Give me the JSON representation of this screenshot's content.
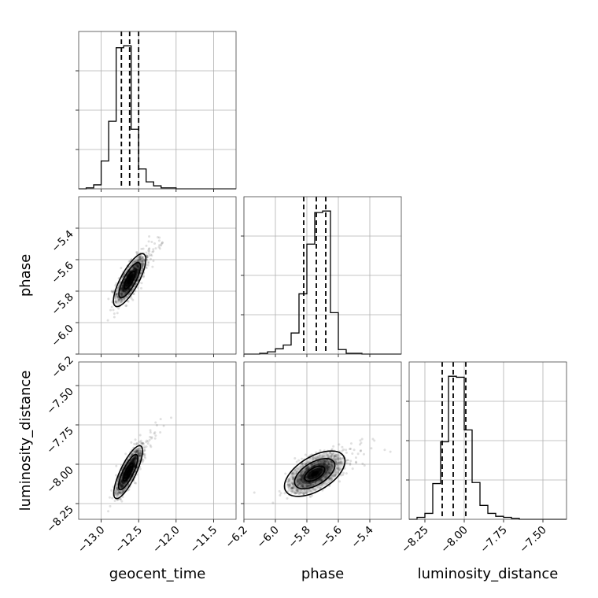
{
  "chart_data": {
    "type": "corner",
    "parameters": [
      {
        "name": "geocent_time",
        "range": [
          -13.3,
          -11.2
        ],
        "ticks": [
          -13.0,
          -12.5,
          -12.0,
          -11.5
        ],
        "tick_labels": [
          "−13.0",
          "−12.5",
          "−12.0",
          "−11.5"
        ],
        "quantiles": [
          -12.73,
          -12.62,
          -12.5
        ],
        "histogram": {
          "bin_edges": [
            -13.3,
            -13.2,
            -13.1,
            -13.0,
            -12.9,
            -12.8,
            -12.7,
            -12.6,
            -12.5,
            -12.4,
            -12.3,
            -12.2,
            -12.1,
            -12.0,
            -11.9,
            -11.8,
            -11.7,
            -11.6,
            -11.5,
            -11.4,
            -11.3,
            -11.2
          ],
          "counts": [
            0,
            1,
            4,
            28,
            68,
            142,
            144,
            60,
            20,
            7,
            3,
            1,
            1,
            0,
            0,
            0,
            0,
            0,
            0,
            0,
            0
          ]
        }
      },
      {
        "name": "phase",
        "range": [
          -6.2,
          -5.2
        ],
        "ticks": [
          -6.2,
          -6.0,
          -5.8,
          -5.6,
          -5.4
        ],
        "tick_labels": [
          "−6.2",
          "−6.0",
          "−5.8",
          "−5.6",
          "−5.4"
        ],
        "quantiles": [
          -5.82,
          -5.74,
          -5.68
        ],
        "histogram": {
          "bin_edges": [
            -6.2,
            -6.15,
            -6.1,
            -6.05,
            -6.0,
            -5.95,
            -5.9,
            -5.85,
            -5.8,
            -5.75,
            -5.7,
            -5.65,
            -5.6,
            -5.55,
            -5.5,
            -5.45,
            -5.4,
            -5.35,
            -5.3,
            -5.25,
            -5.2
          ],
          "counts": [
            0,
            0,
            1,
            3,
            7,
            12,
            28,
            80,
            146,
            188,
            190,
            55,
            6,
            1,
            1,
            0,
            0,
            0,
            0,
            0
          ]
        }
      },
      {
        "name": "luminosity_distance",
        "range": [
          -8.35,
          -7.35
        ],
        "ticks": [
          -8.25,
          -8.0,
          -7.75,
          -7.5
        ],
        "tick_labels": [
          "−8.25",
          "−8.00",
          "−7.75",
          "−7.50"
        ],
        "quantiles": [
          -8.14,
          -8.07,
          -7.99
        ],
        "histogram": {
          "bin_edges": [
            -8.35,
            -8.3,
            -8.25,
            -8.2,
            -8.15,
            -8.1,
            -8.05,
            -8.0,
            -7.95,
            -7.9,
            -7.85,
            -7.8,
            -7.75,
            -7.7,
            -7.65,
            -7.6,
            -7.55,
            -7.5,
            -7.45,
            -7.4,
            -7.35
          ],
          "counts": [
            0,
            2,
            6,
            36,
            78,
            144,
            143,
            90,
            37,
            14,
            6,
            3,
            2,
            1,
            0,
            0,
            0,
            0,
            0,
            0
          ]
        }
      }
    ],
    "pairs": [
      {
        "x_param": "geocent_time",
        "y_param": "phase",
        "peak": [
          -12.62,
          -5.73
        ],
        "sigma": [
          0.09,
          0.07
        ],
        "correlation": 0.78,
        "contour_levels": [
          0.5,
          1.0,
          1.5
        ]
      },
      {
        "x_param": "geocent_time",
        "y_param": "luminosity_distance",
        "peak": [
          -12.64,
          -8.05
        ],
        "sigma": [
          0.08,
          0.07
        ],
        "correlation": 0.8,
        "contour_levels": [
          0.5,
          1.0,
          1.5
        ]
      },
      {
        "x_param": "phase",
        "y_param": "luminosity_distance",
        "peak": [
          -5.75,
          -8.06
        ],
        "sigma": [
          0.08,
          0.06
        ],
        "correlation": 0.55,
        "contour_levels": [
          0.5,
          1.0,
          1.5
        ]
      }
    ],
    "grid": true,
    "colors": {
      "samples": "#000000",
      "contours": "#000000",
      "grid": "#b0b0b0"
    }
  }
}
